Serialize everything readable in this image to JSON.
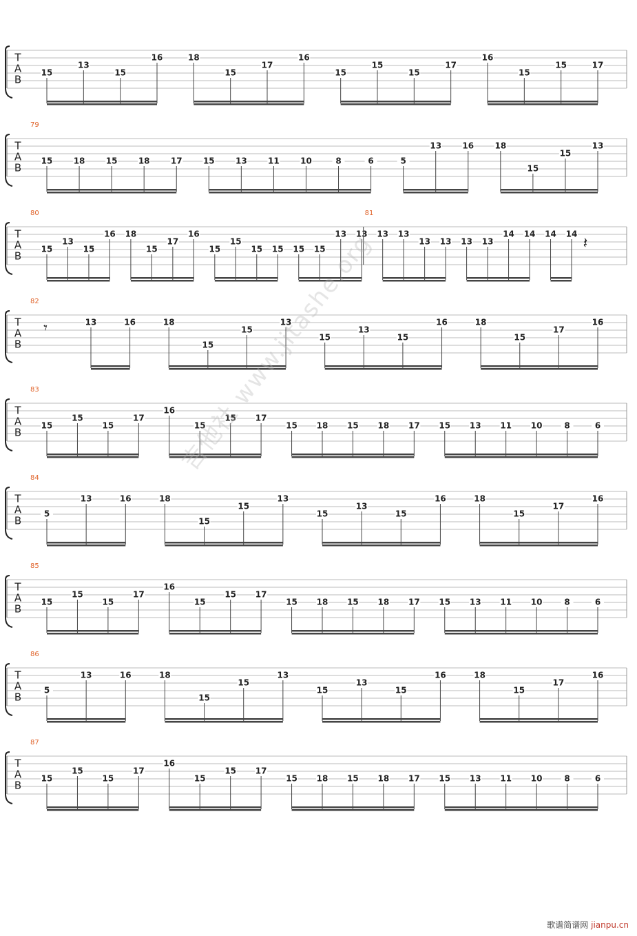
{
  "tab_label": [
    "T",
    "A",
    "B"
  ],
  "watermark": "吉他社 www.jitashe.org",
  "footer": {
    "site": "歌谱简谱网",
    "url": "jianpu.cn"
  },
  "systems": [
    {
      "measures": [
        {
          "groups": [
            {
              "notes": [
                {
                  "fret": 15,
                  "string": 4
                },
                {
                  "fret": 13,
                  "string": 3
                },
                {
                  "fret": 15,
                  "string": 4
                },
                {
                  "fret": 16,
                  "string": 2
                }
              ]
            },
            {
              "notes": [
                {
                  "fret": 18,
                  "string": 2
                },
                {
                  "fret": 15,
                  "string": 4
                },
                {
                  "fret": 17,
                  "string": 3
                },
                {
                  "fret": 16,
                  "string": 2
                }
              ]
            },
            {
              "notes": [
                {
                  "fret": 15,
                  "string": 4
                },
                {
                  "fret": 15,
                  "string": 3
                },
                {
                  "fret": 15,
                  "string": 4
                },
                {
                  "fret": 17,
                  "string": 3
                }
              ]
            },
            {
              "notes": [
                {
                  "fret": 16,
                  "string": 2
                },
                {
                  "fret": 15,
                  "string": 4
                },
                {
                  "fret": 15,
                  "string": 3
                },
                {
                  "fret": 17,
                  "string": 3
                }
              ]
            }
          ]
        }
      ]
    },
    {
      "measures": [
        {
          "number": "79",
          "groups": [
            {
              "notes": [
                {
                  "fret": 15,
                  "string": 4
                },
                {
                  "fret": 18,
                  "string": 4
                },
                {
                  "fret": 15,
                  "string": 4
                },
                {
                  "fret": 18,
                  "string": 4
                },
                {
                  "fret": 17,
                  "string": 4
                }
              ]
            },
            {
              "notes": [
                {
                  "fret": 15,
                  "string": 4
                },
                {
                  "fret": 13,
                  "string": 4
                },
                {
                  "fret": 11,
                  "string": 4
                },
                {
                  "fret": 10,
                  "string": 4
                },
                {
                  "fret": 8,
                  "string": 4
                },
                {
                  "fret": 6,
                  "string": 4
                }
              ]
            },
            {
              "notes": [
                {
                  "fret": 5,
                  "string": 4
                },
                {
                  "fret": 13,
                  "string": 2
                },
                {
                  "fret": 16,
                  "string": 2
                }
              ]
            },
            {
              "notes": [
                {
                  "fret": 18,
                  "string": 2
                },
                {
                  "fret": 15,
                  "string": 5
                },
                {
                  "fret": 15,
                  "string": 3
                },
                {
                  "fret": 13,
                  "string": 2
                }
              ]
            }
          ]
        }
      ]
    },
    {
      "measures": [
        {
          "number": "80",
          "groups": [
            {
              "notes": [
                {
                  "fret": 15,
                  "string": 4
                },
                {
                  "fret": 13,
                  "string": 3
                },
                {
                  "fret": 15,
                  "string": 4
                },
                {
                  "fret": 16,
                  "string": 2
                }
              ]
            },
            {
              "notes": [
                {
                  "fret": 18,
                  "string": 2
                },
                {
                  "fret": 15,
                  "string": 4
                },
                {
                  "fret": 17,
                  "string": 3
                },
                {
                  "fret": 16,
                  "string": 2
                }
              ]
            },
            {
              "notes": [
                {
                  "fret": 15,
                  "string": 4
                },
                {
                  "fret": 15,
                  "string": 3
                },
                {
                  "fret": 15,
                  "string": 4
                },
                {
                  "fret": 15,
                  "string": 4
                }
              ]
            },
            {
              "notes": [
                {
                  "fret": 15,
                  "string": 4
                },
                {
                  "fret": 15,
                  "string": 4
                },
                {
                  "fret": 13,
                  "string": 2
                },
                {
                  "fret": 13,
                  "string": 2
                }
              ]
            }
          ]
        },
        {
          "number": "81",
          "groups": [
            {
              "notes": [
                {
                  "fret": 13,
                  "string": 2
                },
                {
                  "fret": 13,
                  "string": 2
                },
                {
                  "fret": 13,
                  "string": 3
                },
                {
                  "fret": 13,
                  "string": 3
                }
              ]
            },
            {
              "notes": [
                {
                  "fret": 13,
                  "string": 3
                },
                {
                  "fret": 13,
                  "string": 3
                },
                {
                  "fret": 14,
                  "string": 2
                },
                {
                  "fret": 14,
                  "string": 2
                }
              ]
            },
            {
              "notes": [
                {
                  "fret": 14,
                  "string": 2
                },
                {
                  "fret": 14,
                  "string": 2
                }
              ]
            }
          ]
        }
      ]
    },
    {
      "measures": [
        {
          "number": "82",
          "groups": [
            {
              "notes": [
                {
                  "fret": 13,
                  "string": 2
                },
                {
                  "fret": 16,
                  "string": 2
                }
              ]
            },
            {
              "notes": [
                {
                  "fret": 18,
                  "string": 2
                },
                {
                  "fret": 15,
                  "string": 5
                },
                {
                  "fret": 15,
                  "string": 3
                },
                {
                  "fret": 13,
                  "string": 2
                }
              ]
            },
            {
              "notes": [
                {
                  "fret": 15,
                  "string": 4
                },
                {
                  "fret": 13,
                  "string": 3
                },
                {
                  "fret": 15,
                  "string": 4
                },
                {
                  "fret": 16,
                  "string": 2
                }
              ]
            },
            {
              "notes": [
                {
                  "fret": 18,
                  "string": 2
                },
                {
                  "fret": 15,
                  "string": 4
                },
                {
                  "fret": 17,
                  "string": 3
                },
                {
                  "fret": 16,
                  "string": 2
                }
              ]
            }
          ]
        }
      ]
    },
    {
      "measures": [
        {
          "number": "83",
          "groups": [
            {
              "notes": [
                {
                  "fret": 15,
                  "string": 4
                },
                {
                  "fret": 15,
                  "string": 3
                },
                {
                  "fret": 15,
                  "string": 4
                },
                {
                  "fret": 17,
                  "string": 3
                }
              ]
            },
            {
              "notes": [
                {
                  "fret": 16,
                  "string": 2
                },
                {
                  "fret": 15,
                  "string": 4
                },
                {
                  "fret": 15,
                  "string": 3
                },
                {
                  "fret": 17,
                  "string": 3
                }
              ]
            },
            {
              "notes": [
                {
                  "fret": 15,
                  "string": 4
                },
                {
                  "fret": 18,
                  "string": 4
                },
                {
                  "fret": 15,
                  "string": 4
                },
                {
                  "fret": 18,
                  "string": 4
                },
                {
                  "fret": 17,
                  "string": 4
                }
              ]
            },
            {
              "notes": [
                {
                  "fret": 15,
                  "string": 4
                },
                {
                  "fret": 13,
                  "string": 4
                },
                {
                  "fret": 11,
                  "string": 4
                },
                {
                  "fret": 10,
                  "string": 4
                },
                {
                  "fret": 8,
                  "string": 4
                },
                {
                  "fret": 6,
                  "string": 4
                }
              ]
            }
          ]
        }
      ]
    },
    {
      "measures": [
        {
          "number": "84",
          "groups": [
            {
              "notes": [
                {
                  "fret": 5,
                  "string": 4
                },
                {
                  "fret": 13,
                  "string": 2
                },
                {
                  "fret": 16,
                  "string": 2
                }
              ]
            },
            {
              "notes": [
                {
                  "fret": 18,
                  "string": 2
                },
                {
                  "fret": 15,
                  "string": 5
                },
                {
                  "fret": 15,
                  "string": 3
                },
                {
                  "fret": 13,
                  "string": 2
                }
              ]
            },
            {
              "notes": [
                {
                  "fret": 15,
                  "string": 4
                },
                {
                  "fret": 13,
                  "string": 3
                },
                {
                  "fret": 15,
                  "string": 4
                },
                {
                  "fret": 16,
                  "string": 2
                }
              ]
            },
            {
              "notes": [
                {
                  "fret": 18,
                  "string": 2
                },
                {
                  "fret": 15,
                  "string": 4
                },
                {
                  "fret": 17,
                  "string": 3
                },
                {
                  "fret": 16,
                  "string": 2
                }
              ]
            }
          ]
        }
      ]
    },
    {
      "measures": [
        {
          "number": "85",
          "groups": [
            {
              "notes": [
                {
                  "fret": 15,
                  "string": 4
                },
                {
                  "fret": 15,
                  "string": 3
                },
                {
                  "fret": 15,
                  "string": 4
                },
                {
                  "fret": 17,
                  "string": 3
                }
              ]
            },
            {
              "notes": [
                {
                  "fret": 16,
                  "string": 2
                },
                {
                  "fret": 15,
                  "string": 4
                },
                {
                  "fret": 15,
                  "string": 3
                },
                {
                  "fret": 17,
                  "string": 3
                }
              ]
            },
            {
              "notes": [
                {
                  "fret": 15,
                  "string": 4
                },
                {
                  "fret": 18,
                  "string": 4
                },
                {
                  "fret": 15,
                  "string": 4
                },
                {
                  "fret": 18,
                  "string": 4
                },
                {
                  "fret": 17,
                  "string": 4
                }
              ]
            },
            {
              "notes": [
                {
                  "fret": 15,
                  "string": 4
                },
                {
                  "fret": 13,
                  "string": 4
                },
                {
                  "fret": 11,
                  "string": 4
                },
                {
                  "fret": 10,
                  "string": 4
                },
                {
                  "fret": 8,
                  "string": 4
                },
                {
                  "fret": 6,
                  "string": 4
                }
              ]
            }
          ]
        }
      ]
    },
    {
      "measures": [
        {
          "number": "86",
          "groups": [
            {
              "notes": [
                {
                  "fret": 5,
                  "string": 4
                },
                {
                  "fret": 13,
                  "string": 2
                },
                {
                  "fret": 16,
                  "string": 2
                }
              ]
            },
            {
              "notes": [
                {
                  "fret": 18,
                  "string": 2
                },
                {
                  "fret": 15,
                  "string": 5
                },
                {
                  "fret": 15,
                  "string": 3
                },
                {
                  "fret": 13,
                  "string": 2
                }
              ]
            },
            {
              "notes": [
                {
                  "fret": 15,
                  "string": 4
                },
                {
                  "fret": 13,
                  "string": 3
                },
                {
                  "fret": 15,
                  "string": 4
                },
                {
                  "fret": 16,
                  "string": 2
                }
              ]
            },
            {
              "notes": [
                {
                  "fret": 18,
                  "string": 2
                },
                {
                  "fret": 15,
                  "string": 4
                },
                {
                  "fret": 17,
                  "string": 3
                },
                {
                  "fret": 16,
                  "string": 2
                }
              ]
            }
          ]
        }
      ]
    },
    {
      "measures": [
        {
          "number": "87",
          "groups": [
            {
              "notes": [
                {
                  "fret": 15,
                  "string": 4
                },
                {
                  "fret": 15,
                  "string": 3
                },
                {
                  "fret": 15,
                  "string": 4
                },
                {
                  "fret": 17,
                  "string": 3
                }
              ]
            },
            {
              "notes": [
                {
                  "fret": 16,
                  "string": 2
                },
                {
                  "fret": 15,
                  "string": 4
                },
                {
                  "fret": 15,
                  "string": 3
                },
                {
                  "fret": 17,
                  "string": 3
                }
              ]
            },
            {
              "notes": [
                {
                  "fret": 15,
                  "string": 4
                },
                {
                  "fret": 18,
                  "string": 4
                },
                {
                  "fret": 15,
                  "string": 4
                },
                {
                  "fret": 18,
                  "string": 4
                },
                {
                  "fret": 17,
                  "string": 4
                }
              ]
            },
            {
              "notes": [
                {
                  "fret": 15,
                  "string": 4
                },
                {
                  "fret": 13,
                  "string": 4
                },
                {
                  "fret": 11,
                  "string": 4
                },
                {
                  "fret": 10,
                  "string": 4
                },
                {
                  "fret": 8,
                  "string": 4
                },
                {
                  "fret": 6,
                  "string": 4
                }
              ]
            }
          ]
        }
      ]
    }
  ]
}
